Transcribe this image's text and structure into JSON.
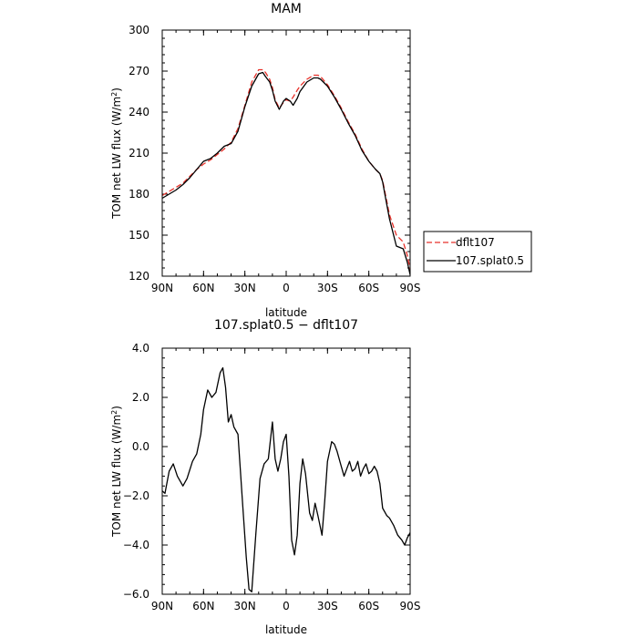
{
  "chart_data": [
    {
      "type": "line",
      "title": "MAM",
      "xlabel": "latitude",
      "ylabel": "TOM net LW flux (W/m²)",
      "ylabel_base": "TOM net LW flux (W/m",
      "ylabel_sup": "2",
      "ylabel_end": ")",
      "xlim": [
        -90,
        90
      ],
      "ylim": [
        120,
        300
      ],
      "x_ticks": [
        -90,
        -60,
        -30,
        0,
        30,
        60,
        90
      ],
      "x_tick_labels": [
        "90N",
        "60N",
        "30N",
        "0",
        "30S",
        "60S",
        "90S"
      ],
      "y_ticks": [
        120,
        150,
        180,
        210,
        240,
        270,
        300
      ],
      "y_tick_labels": [
        "120",
        "150",
        "180",
        "210",
        "240",
        "270",
        "300"
      ],
      "legend_position": "right",
      "series": [
        {
          "name": "dflt107",
          "color": "#e8312a",
          "dash": "dashed",
          "x": [
            -90,
            -80,
            -75,
            -70,
            -65,
            -60,
            -55,
            -50,
            -45,
            -40,
            -35,
            -30,
            -25,
            -20,
            -17,
            -15,
            -12,
            -10,
            -8,
            -5,
            -2,
            0,
            3,
            5,
            8,
            10,
            15,
            20,
            23,
            25,
            30,
            35,
            40,
            45,
            50,
            55,
            60,
            65,
            68,
            70,
            72,
            75,
            80,
            85,
            88,
            90
          ],
          "y": [
            179,
            185,
            188,
            193,
            198,
            202,
            205,
            209,
            213,
            218,
            228,
            245,
            262,
            271,
            271,
            269,
            264,
            258,
            249,
            243,
            247,
            249,
            248,
            251,
            256,
            259,
            264,
            267,
            267,
            266,
            260,
            252,
            243,
            233,
            224,
            213,
            204,
            198,
            195,
            190,
            180,
            165,
            150,
            145,
            135,
            125
          ]
        },
        {
          "name": "107.splat0.5",
          "color": "#000000",
          "dash": "solid",
          "x": [
            -90,
            -80,
            -75,
            -70,
            -65,
            -60,
            -55,
            -50,
            -45,
            -40,
            -35,
            -30,
            -25,
            -20,
            -17,
            -15,
            -12,
            -10,
            -8,
            -5,
            -2,
            0,
            3,
            5,
            8,
            10,
            15,
            20,
            23,
            25,
            30,
            35,
            40,
            45,
            50,
            55,
            60,
            65,
            68,
            70,
            72,
            75,
            80,
            85,
            88,
            90
          ],
          "y": [
            177,
            183,
            187,
            192,
            198,
            204,
            206,
            210,
            215,
            217,
            226,
            244,
            259,
            268,
            269,
            266,
            262,
            256,
            248,
            242,
            248,
            250,
            248,
            245,
            250,
            255,
            262,
            265,
            265,
            264,
            259,
            251,
            242,
            232,
            223,
            212,
            204,
            198,
            195,
            189,
            178,
            162,
            142,
            140,
            130,
            121
          ]
        }
      ]
    },
    {
      "type": "line",
      "title": "107.splat0.5 − dflt107",
      "xlabel": "latitude",
      "ylabel": "TOM net LW flux (W/m²)",
      "ylabel_base": "TOM net LW flux (W/m",
      "ylabel_sup": "2",
      "ylabel_end": ")",
      "xlim": [
        -90,
        90
      ],
      "ylim": [
        -6,
        4
      ],
      "x_ticks": [
        -90,
        -60,
        -30,
        0,
        30,
        60,
        90
      ],
      "x_tick_labels": [
        "90N",
        "60N",
        "30N",
        "0",
        "30S",
        "60S",
        "90S"
      ],
      "y_ticks": [
        -6,
        -4,
        -2,
        0,
        2,
        4
      ],
      "y_tick_labels": [
        "−6.0",
        "−4.0",
        "−2.0",
        "0.0",
        "2.0",
        "4.0"
      ],
      "series": [
        {
          "color": "#000000",
          "dash": "solid",
          "x": [
            -90,
            -88,
            -85,
            -82,
            -79,
            -75,
            -72,
            -68,
            -65,
            -62,
            -60,
            -57,
            -54,
            -51,
            -48,
            -46,
            -44,
            -42,
            -40,
            -38,
            -35,
            -32,
            -29,
            -27,
            -25,
            -22,
            -19,
            -16,
            -13,
            -10,
            -8,
            -6,
            -4,
            -2,
            0,
            2,
            4,
            6,
            8,
            10,
            12,
            14,
            17,
            19,
            21,
            23,
            26,
            28,
            30,
            33,
            35,
            37,
            40,
            42,
            44,
            46,
            48,
            50,
            52,
            54,
            56,
            58,
            60,
            62,
            64,
            66,
            68,
            70,
            73,
            75,
            78,
            81,
            84,
            86,
            88,
            90
          ],
          "y": [
            -1.8,
            -1.9,
            -1.0,
            -0.7,
            -1.2,
            -1.6,
            -1.3,
            -0.6,
            -0.3,
            0.5,
            1.5,
            2.3,
            2.0,
            2.2,
            3.0,
            3.2,
            2.4,
            1.0,
            1.3,
            0.8,
            0.5,
            -2.0,
            -4.5,
            -5.8,
            -5.9,
            -3.5,
            -1.3,
            -0.7,
            -0.5,
            1.0,
            -0.5,
            -1.0,
            -0.5,
            0.2,
            0.5,
            -1.2,
            -3.8,
            -4.4,
            -3.6,
            -1.5,
            -0.5,
            -1.1,
            -2.7,
            -3.0,
            -2.3,
            -2.8,
            -3.6,
            -2.2,
            -0.6,
            0.2,
            0.1,
            -0.2,
            -0.8,
            -1.2,
            -0.9,
            -0.6,
            -1.0,
            -0.9,
            -0.6,
            -1.2,
            -0.9,
            -0.7,
            -1.1,
            -1.0,
            -0.8,
            -1.0,
            -1.5,
            -2.5,
            -2.8,
            -2.9,
            -3.2,
            -3.6,
            -3.8,
            -4.0,
            -3.7,
            -3.5
          ]
        }
      ]
    }
  ]
}
